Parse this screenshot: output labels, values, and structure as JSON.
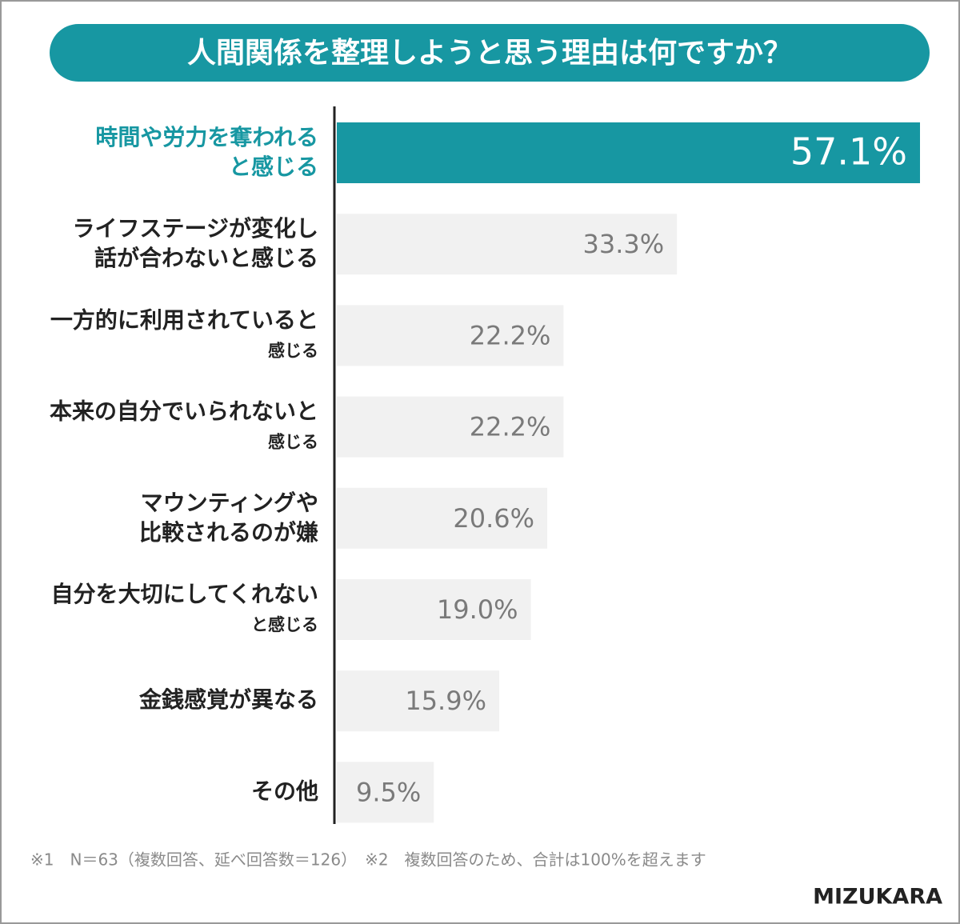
{
  "chart_data": {
    "type": "hbar",
    "title": "人間関係を整理しようと思う理由は何ですか？",
    "categories": [
      [
        "時間や労力を奪われる",
        "と感じる"
      ],
      [
        "ライフステージが変化し",
        "話が合わないと感じる"
      ],
      [
        "一方的に利用されていると",
        "感じる"
      ],
      [
        "本来の自分でいられないと",
        "感じる"
      ],
      [
        "マウンティングや",
        "比較されるのが嫌"
      ],
      [
        "自分を大切にしてくれない",
        "と感じる"
      ],
      [
        "金銭感覚が異なる"
      ],
      [
        "その他"
      ]
    ],
    "values": [
      57.1,
      33.3,
      22.2,
      22.2,
      20.6,
      19.0,
      15.9,
      9.5
    ],
    "value_labels": [
      "57.1%",
      "33.3%",
      "22.2%",
      "22.2%",
      "20.6%",
      "19.0%",
      "15.9%",
      "9.5%"
    ],
    "colors": [
      "#1797a2",
      "#f1f1f1",
      "#f1f1f1",
      "#f1f1f1",
      "#f1f1f1",
      "#f1f1f1",
      "#f1f1f1",
      "#f1f1f1"
    ],
    "label_colors": [
      "#ffffff",
      "#7a7a7a",
      "#7a7a7a",
      "#7a7a7a",
      "#7a7a7a",
      "#7a7a7a",
      "#7a7a7a",
      "#7a7a7a"
    ],
    "category_colors": [
      "#1797a2",
      "#222222",
      "#222222",
      "#222222",
      "#222222",
      "#222222",
      "#222222",
      "#222222"
    ],
    "footnote": "※1　N＝63（複数回答、延べ回答数＝126）　※2　複数回答のため、合計は100%を超えます",
    "logo": "MIZUKARA"
  }
}
